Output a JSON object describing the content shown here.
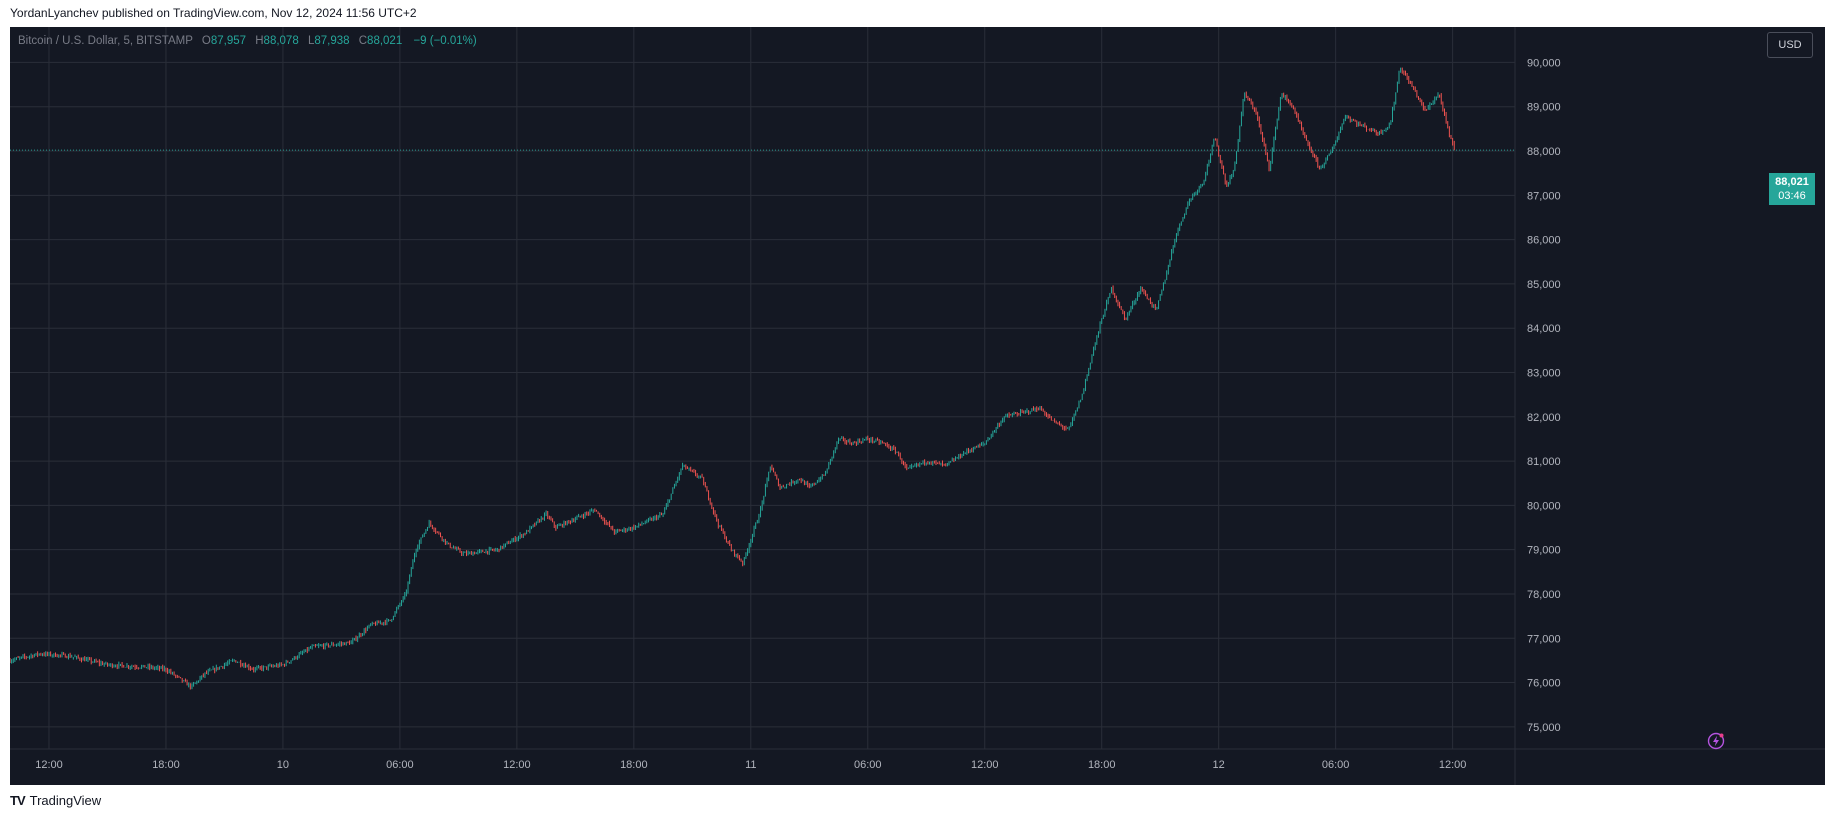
{
  "header": {
    "published": "YordanLyanchev published on TradingView.com, Nov 12, 2024 11:56 UTC+2"
  },
  "legend": {
    "symbol": "Bitcoin / U.S. Dollar, 5, BITSTAMP",
    "o_label": "O",
    "o": "87,957",
    "h_label": "H",
    "h": "88,078",
    "l_label": "L",
    "l": "87,938",
    "c_label": "C",
    "c": "88,021",
    "change": "−9 (−0.01%)"
  },
  "currency_button": "USD",
  "last_price": {
    "price": "88,021",
    "countdown": "03:46"
  },
  "footer": {
    "brand": "TradingView"
  },
  "colors": {
    "up": "#26a69a",
    "down": "#ef5350",
    "background": "#141823",
    "grid": "#2a2e39"
  },
  "chart_data": {
    "type": "candlestick",
    "interval": "5",
    "ylim": [
      74500,
      90800
    ],
    "y_ticks": [
      75000,
      76000,
      77000,
      78000,
      79000,
      80000,
      81000,
      82000,
      83000,
      84000,
      85000,
      86000,
      87000,
      88000,
      89000,
      90000
    ],
    "y_tick_labels": [
      "75,000",
      "76,000",
      "77,000",
      "78,000",
      "79,000",
      "80,000",
      "81,000",
      "82,000",
      "83,000",
      "84,000",
      "85,000",
      "86,000",
      "87,000",
      "88,000",
      "89,000",
      "90,000"
    ],
    "x_ticks": [
      {
        "t": 2,
        "label": "12:00"
      },
      {
        "t": 8,
        "label": "18:00"
      },
      {
        "t": 14,
        "label": "10"
      },
      {
        "t": 20,
        "label": "06:00"
      },
      {
        "t": 26,
        "label": "12:00"
      },
      {
        "t": 32,
        "label": "18:00"
      },
      {
        "t": 38,
        "label": "11"
      },
      {
        "t": 44,
        "label": "06:00"
      },
      {
        "t": 50,
        "label": "12:00"
      },
      {
        "t": 56,
        "label": "18:00"
      },
      {
        "t": 62,
        "label": "12"
      },
      {
        "t": 68,
        "label": "06:00"
      },
      {
        "t": 74,
        "label": "12:00"
      }
    ],
    "x_range_hours": [
      0,
      77.2
    ],
    "close_path": [
      [
        0,
        76500
      ],
      [
        1.5,
        76650
      ],
      [
        3,
        76600
      ],
      [
        5,
        76400
      ],
      [
        7,
        76350
      ],
      [
        8,
        76300
      ],
      [
        9.3,
        75900
      ],
      [
        10,
        76200
      ],
      [
        11.5,
        76500
      ],
      [
        12.5,
        76300
      ],
      [
        14,
        76400
      ],
      [
        15.5,
        76800
      ],
      [
        17.5,
        76900
      ],
      [
        18.5,
        77300
      ],
      [
        19.5,
        77400
      ],
      [
        20.3,
        78000
      ],
      [
        20.8,
        79000
      ],
      [
        21.5,
        79600
      ],
      [
        22.5,
        79100
      ],
      [
        23.3,
        78900
      ],
      [
        25,
        79000
      ],
      [
        26.5,
        79400
      ],
      [
        27.5,
        79800
      ],
      [
        28,
        79500
      ],
      [
        29,
        79700
      ],
      [
        30,
        79900
      ],
      [
        31,
        79400
      ],
      [
        32,
        79500
      ],
      [
        33.5,
        79800
      ],
      [
        34.5,
        80900
      ],
      [
        35.5,
        80600
      ],
      [
        36.3,
        79600
      ],
      [
        37,
        79000
      ],
      [
        37.6,
        78700
      ],
      [
        38.5,
        79900
      ],
      [
        39,
        80900
      ],
      [
        39.5,
        80400
      ],
      [
        40.5,
        80600
      ],
      [
        41,
        80400
      ],
      [
        41.8,
        80700
      ],
      [
        42.5,
        81500
      ],
      [
        43.2,
        81400
      ],
      [
        44,
        81500
      ],
      [
        44.8,
        81400
      ],
      [
        45.5,
        81200
      ],
      [
        46,
        80800
      ],
      [
        47,
        81000
      ],
      [
        48,
        80900
      ],
      [
        49,
        81200
      ],
      [
        50,
        81400
      ],
      [
        51,
        82000
      ],
      [
        52,
        82100
      ],
      [
        52.8,
        82200
      ],
      [
        53.5,
        81900
      ],
      [
        54.3,
        81700
      ],
      [
        55,
        82500
      ],
      [
        55.5,
        83400
      ],
      [
        56,
        84200
      ],
      [
        56.5,
        84900
      ],
      [
        57.2,
        84200
      ],
      [
        58,
        84900
      ],
      [
        58.8,
        84400
      ],
      [
        59.3,
        85200
      ],
      [
        59.8,
        86100
      ],
      [
        60.5,
        86900
      ],
      [
        61.2,
        87300
      ],
      [
        61.8,
        88300
      ],
      [
        62.4,
        87200
      ],
      [
        62.8,
        87600
      ],
      [
        63.3,
        89300
      ],
      [
        63.9,
        88900
      ],
      [
        64.6,
        87600
      ],
      [
        65.2,
        89300
      ],
      [
        65.8,
        89000
      ],
      [
        66.5,
        88200
      ],
      [
        67.2,
        87600
      ],
      [
        67.8,
        88000
      ],
      [
        68.5,
        88800
      ],
      [
        69.2,
        88600
      ],
      [
        70.2,
        88400
      ],
      [
        70.8,
        88600
      ],
      [
        71.3,
        89900
      ],
      [
        72,
        89400
      ],
      [
        72.6,
        88900
      ],
      [
        73.3,
        89300
      ],
      [
        73.8,
        88400
      ],
      [
        74.1,
        88021
      ]
    ]
  }
}
